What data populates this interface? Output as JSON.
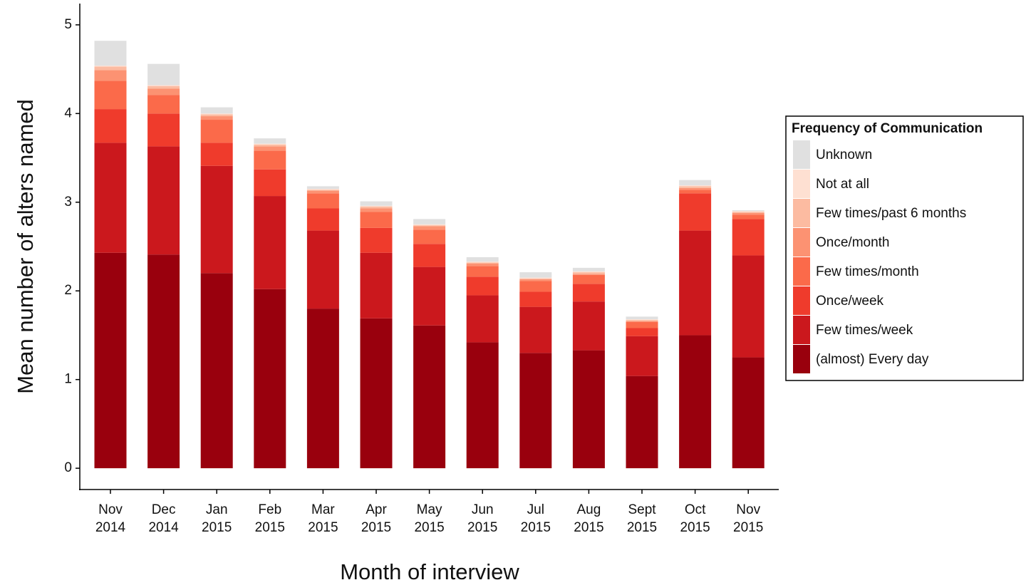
{
  "chart_data": {
    "type": "stacked-bar",
    "x_label": "Month of interview",
    "y_label": "Mean number of alters named",
    "legend_title": "Frequency of Communication",
    "legend_position": "right",
    "categories": [
      [
        "Nov",
        "2014"
      ],
      [
        "Dec",
        "2014"
      ],
      [
        "Jan",
        "2015"
      ],
      [
        "Feb",
        "2015"
      ],
      [
        "Mar",
        "2015"
      ],
      [
        "Apr",
        "2015"
      ],
      [
        "May",
        "2015"
      ],
      [
        "Jun",
        "2015"
      ],
      [
        "Jul",
        "2015"
      ],
      [
        "Aug",
        "2015"
      ],
      [
        "Sept",
        "2015"
      ],
      [
        "Oct",
        "2015"
      ],
      [
        "Nov",
        "2015"
      ]
    ],
    "ylim": [
      -0.24,
      5.24
    ],
    "yticks": [
      0,
      1,
      2,
      3,
      4,
      5
    ],
    "series": [
      {
        "name": "(almost) Every day",
        "color": "#99000d",
        "values": [
          2.43,
          2.41,
          2.2,
          2.02,
          1.8,
          1.69,
          1.61,
          1.42,
          1.3,
          1.33,
          1.04,
          1.5,
          1.25
        ]
      },
      {
        "name": "Few times/week",
        "color": "#cb181d",
        "values": [
          1.24,
          1.22,
          1.21,
          1.05,
          0.88,
          0.74,
          0.66,
          0.53,
          0.52,
          0.55,
          0.45,
          1.18,
          1.15
        ]
      },
      {
        "name": "Once/week",
        "color": "#ef3b2c",
        "values": [
          0.38,
          0.37,
          0.26,
          0.3,
          0.25,
          0.28,
          0.26,
          0.21,
          0.17,
          0.2,
          0.09,
          0.42,
          0.41
        ]
      },
      {
        "name": "Few times/month",
        "color": "#fb6a4a",
        "values": [
          0.32,
          0.21,
          0.26,
          0.21,
          0.17,
          0.18,
          0.16,
          0.12,
          0.12,
          0.1,
          0.07,
          0.04,
          0.05
        ]
      },
      {
        "name": "Once/month",
        "color": "#fc9272",
        "values": [
          0.12,
          0.07,
          0.04,
          0.05,
          0.03,
          0.04,
          0.04,
          0.03,
          0.02,
          0.01,
          0.01,
          0.02,
          0.02
        ]
      },
      {
        "name": "Few times/past 6 months",
        "color": "#fcbba1",
        "values": [
          0.04,
          0.03,
          0.02,
          0.02,
          0.01,
          0.02,
          0.01,
          0.01,
          0.01,
          0.02,
          0.01,
          0.02,
          0.01
        ]
      },
      {
        "name": "Not at all",
        "color": "#fee0d2",
        "values": [
          0.01,
          0.01,
          0.01,
          0.01,
          0.01,
          0.01,
          0.01,
          0.01,
          0.01,
          0.01,
          0.01,
          0.01,
          0.01
        ]
      },
      {
        "name": "Unknown",
        "color": "#e0e0e0",
        "values": [
          0.28,
          0.24,
          0.07,
          0.06,
          0.03,
          0.05,
          0.06,
          0.05,
          0.06,
          0.04,
          0.03,
          0.06,
          0.01
        ]
      }
    ]
  }
}
